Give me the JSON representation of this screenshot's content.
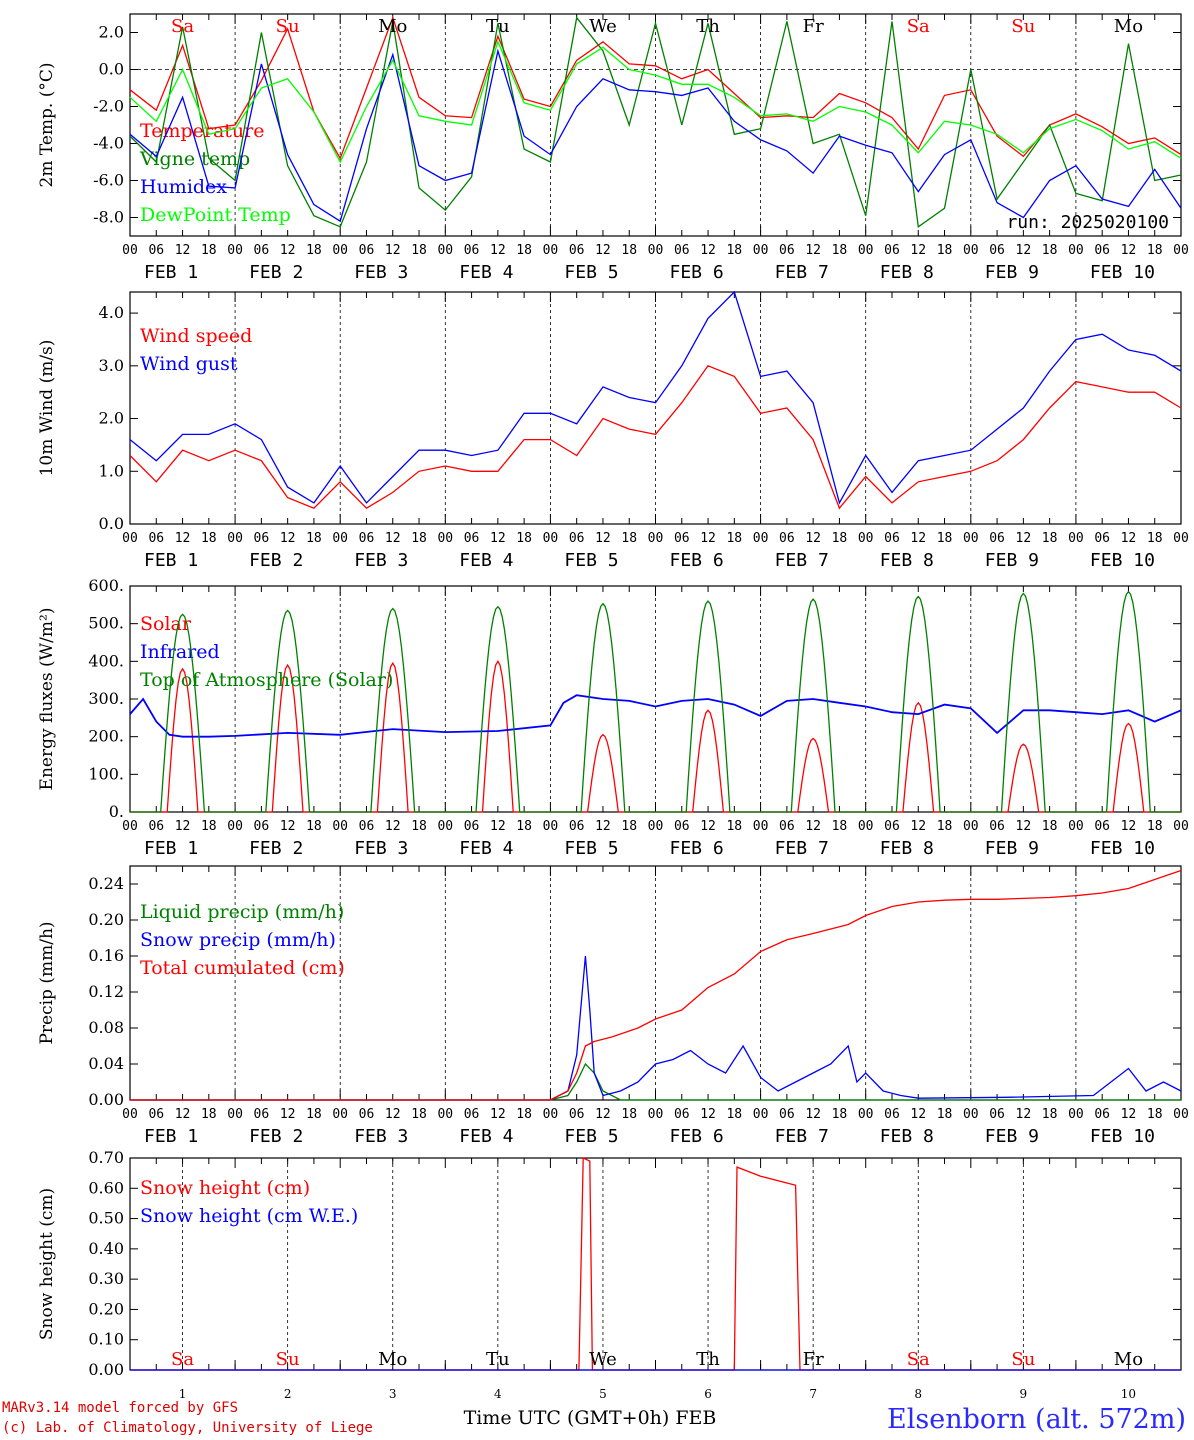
{
  "colors": {
    "red": "#ff0000",
    "green": "#008000",
    "blue": "#0000ff",
    "lightgreen": "#00ff00",
    "axis": "#000000"
  },
  "footer": {
    "credit1": "MARv3.14 model forced by GFS",
    "credit2": "(c) Lab. of Climatology, University of Liege",
    "xlabel": "Time UTC (GMT+0h) FEB",
    "station": "Elsenborn (alt. 572m)"
  },
  "hour_ticks": [
    "00",
    "06",
    "12",
    "18"
  ],
  "date_labels": [
    "FEB  1",
    "FEB  2",
    "FEB  3",
    "FEB  4",
    "FEB  5",
    "FEB  6",
    "FEB  7",
    "FEB  8",
    "FEB  9",
    "FEB 10"
  ],
  "bottom_day_numbers": [
    "1",
    "2",
    "3",
    "4",
    "5",
    "6",
    "7",
    "8",
    "9",
    "10"
  ],
  "weekdays": [
    {
      "label": "Sa",
      "color": "#ff0000"
    },
    {
      "label": "Su",
      "color": "#ff0000"
    },
    {
      "label": "Mo",
      "color": "#000000"
    },
    {
      "label": "Tu",
      "color": "#000000"
    },
    {
      "label": "We",
      "color": "#000000"
    },
    {
      "label": "Th",
      "color": "#000000"
    },
    {
      "label": "Fr",
      "color": "#000000"
    },
    {
      "label": "Sa",
      "color": "#ff0000"
    },
    {
      "label": "Su",
      "color": "#ff0000"
    },
    {
      "label": "Mo",
      "color": "#000000"
    }
  ],
  "chart_data": [
    {
      "type": "line",
      "ylabel": "2m Temp. (°C)",
      "ylim": [
        -9,
        3
      ],
      "yticks": [
        "-8.0",
        "-6.0",
        "-4.0",
        "-2.0",
        "0.0",
        "2.0"
      ],
      "yvalues": [
        -8,
        -6,
        -4,
        -2,
        0,
        2
      ],
      "zero_line": true,
      "annotation": "run: 2025020100",
      "x_unit": "hours since FEB 1 00 UTC",
      "series": [
        {
          "name": "Temperature",
          "color": "#ff0000",
          "x": [
            0,
            6,
            12,
            18,
            24,
            30,
            36,
            42,
            48,
            54,
            60,
            66,
            72,
            78,
            84,
            90,
            96,
            102,
            108,
            114,
            120,
            126,
            132,
            138,
            144,
            150,
            156,
            162,
            168,
            174,
            180,
            186,
            192,
            198,
            204,
            210,
            216,
            222,
            228,
            234,
            240
          ],
          "y": [
            -1.1,
            -2.2,
            1.3,
            -3.2,
            -3.0,
            -0.6,
            2.2,
            -2.3,
            -4.8,
            -1.0,
            2.8,
            -1.5,
            -2.5,
            -2.6,
            1.8,
            -1.6,
            -2.0,
            0.5,
            1.5,
            0.3,
            0.2,
            -0.5,
            0.0,
            -1.3,
            -2.6,
            -2.5,
            -2.6,
            -1.3,
            -1.8,
            -2.6,
            -4.3,
            -1.4,
            -1.1,
            -3.6,
            -4.7,
            -3.0,
            -2.4,
            -3.1,
            -4.0,
            -3.7,
            -4.6
          ]
        },
        {
          "name": "Vigne temp",
          "color": "#008000",
          "x": [
            0,
            6,
            12,
            18,
            24,
            30,
            36,
            42,
            48,
            54,
            60,
            66,
            72,
            78,
            84,
            90,
            96,
            102,
            108,
            114,
            120,
            126,
            132,
            138,
            144,
            150,
            156,
            162,
            168,
            174,
            180,
            186,
            192,
            198,
            204,
            210,
            216,
            222,
            228,
            234,
            240
          ],
          "y": [
            -3.6,
            -5.0,
            2.3,
            -4.8,
            -6.0,
            2.0,
            -5.2,
            -7.9,
            -8.5,
            -5.0,
            2.6,
            -6.4,
            -7.6,
            -5.8,
            2.5,
            -4.3,
            -5.0,
            2.8,
            1.0,
            -3.0,
            2.5,
            -3.0,
            2.5,
            -3.5,
            -3.2,
            2.6,
            -4.0,
            -3.5,
            -7.9,
            2.6,
            -8.5,
            -7.5,
            0.0,
            -7.0,
            -5.0,
            -3.0,
            -6.7,
            -7.1,
            1.4,
            -6.0,
            -5.7
          ]
        },
        {
          "name": "Humidex",
          "color": "#0000ff",
          "x": [
            0,
            6,
            12,
            18,
            24,
            30,
            36,
            42,
            48,
            54,
            60,
            66,
            72,
            78,
            84,
            90,
            96,
            102,
            108,
            114,
            120,
            126,
            132,
            138,
            144,
            150,
            156,
            162,
            168,
            174,
            180,
            186,
            192,
            198,
            204,
            210,
            216,
            222,
            228,
            234,
            240
          ],
          "y": [
            -3.5,
            -4.7,
            -1.5,
            -6.3,
            -6.4,
            0.3,
            -4.6,
            -7.3,
            -8.2,
            -3.2,
            0.8,
            -5.2,
            -6.0,
            -5.6,
            1.0,
            -3.6,
            -4.6,
            -2.0,
            -0.5,
            -1.1,
            -1.2,
            -1.4,
            -1.0,
            -2.8,
            -3.8,
            -4.4,
            -5.6,
            -3.6,
            -4.1,
            -4.5,
            -6.6,
            -4.6,
            -3.8,
            -7.2,
            -8.0,
            -6.0,
            -5.2,
            -7.0,
            -7.4,
            -5.4,
            -7.5
          ]
        },
        {
          "name": "DewPoint Temp",
          "color": "#00ff00",
          "x": [
            0,
            6,
            12,
            18,
            24,
            30,
            36,
            42,
            48,
            54,
            60,
            66,
            72,
            78,
            84,
            90,
            96,
            102,
            108,
            114,
            120,
            126,
            132,
            138,
            144,
            150,
            156,
            162,
            168,
            174,
            180,
            186,
            192,
            198,
            204,
            210,
            216,
            222,
            228,
            234,
            240
          ],
          "y": [
            -1.5,
            -2.8,
            0.0,
            -3.5,
            -3.2,
            -1.0,
            -0.5,
            -2.3,
            -5.0,
            -2.0,
            0.5,
            -2.5,
            -2.8,
            -3.0,
            1.5,
            -1.8,
            -2.2,
            0.3,
            1.2,
            0.0,
            -0.3,
            -0.8,
            -0.8,
            -1.5,
            -2.5,
            -2.4,
            -2.8,
            -2.0,
            -2.3,
            -3.0,
            -4.5,
            -2.8,
            -3.0,
            -3.5,
            -4.5,
            -3.2,
            -2.7,
            -3.3,
            -4.3,
            -3.9,
            -4.8
          ]
        }
      ]
    },
    {
      "type": "line",
      "ylabel": "10m Wind (m/s)",
      "ylim": [
        0,
        4.4
      ],
      "yticks": [
        "0.0",
        "1.0",
        "2.0",
        "3.0",
        "4.0"
      ],
      "yvalues": [
        0,
        1,
        2,
        3,
        4
      ],
      "x_unit": "hours since FEB 1 00 UTC",
      "series": [
        {
          "name": "Wind speed",
          "color": "#ff0000",
          "x": [
            0,
            6,
            12,
            18,
            24,
            30,
            36,
            42,
            48,
            54,
            60,
            66,
            72,
            78,
            84,
            90,
            96,
            102,
            108,
            114,
            120,
            126,
            132,
            138,
            144,
            150,
            156,
            162,
            168,
            174,
            180,
            186,
            192,
            198,
            204,
            210,
            216,
            222,
            228,
            234,
            240
          ],
          "y": [
            1.3,
            0.8,
            1.4,
            1.2,
            1.4,
            1.2,
            0.5,
            0.3,
            0.8,
            0.3,
            0.6,
            1.0,
            1.1,
            1.0,
            1.0,
            1.6,
            1.6,
            1.3,
            2.0,
            1.8,
            1.7,
            2.3,
            3.0,
            2.8,
            2.1,
            2.2,
            1.6,
            0.3,
            0.9,
            0.4,
            0.8,
            0.9,
            1.0,
            1.2,
            1.6,
            2.2,
            2.7,
            2.6,
            2.5,
            2.5,
            2.2
          ]
        },
        {
          "name": "Wind gust",
          "color": "#0000ff",
          "x": [
            0,
            6,
            12,
            18,
            24,
            30,
            36,
            42,
            48,
            54,
            60,
            66,
            72,
            78,
            84,
            90,
            96,
            102,
            108,
            114,
            120,
            126,
            132,
            138,
            144,
            150,
            156,
            162,
            168,
            174,
            180,
            186,
            192,
            198,
            204,
            210,
            216,
            222,
            228,
            234,
            240
          ],
          "y": [
            1.6,
            1.2,
            1.7,
            1.7,
            1.9,
            1.6,
            0.7,
            0.4,
            1.1,
            0.4,
            0.9,
            1.4,
            1.4,
            1.3,
            1.4,
            2.1,
            2.1,
            1.9,
            2.6,
            2.4,
            2.3,
            3.0,
            3.9,
            4.4,
            2.8,
            2.9,
            2.3,
            0.4,
            1.3,
            0.6,
            1.2,
            1.3,
            1.4,
            1.8,
            2.2,
            2.9,
            3.5,
            3.6,
            3.3,
            3.2,
            2.9
          ]
        }
      ]
    },
    {
      "type": "line",
      "ylabel": "Energy fluxes (W/m²)",
      "ylim": [
        0,
        600
      ],
      "yticks": [
        "0.",
        "100.",
        "200.",
        "300.",
        "400.",
        "500.",
        "600."
      ],
      "yvalues": [
        0,
        100,
        200,
        300,
        400,
        500,
        600
      ],
      "x_unit": "hours since FEB 1 00 UTC",
      "series": [
        {
          "name": "Solar",
          "color": "#ff0000",
          "peaks": [
            380,
            390,
            395,
            400,
            205,
            270,
            195,
            290,
            180,
            235
          ]
        },
        {
          "name": "Infrared",
          "color": "#0000ff",
          "x": [
            0,
            3,
            6,
            9,
            12,
            18,
            24,
            36,
            48,
            60,
            72,
            84,
            96,
            99,
            102,
            108,
            114,
            120,
            126,
            132,
            138,
            144,
            150,
            156,
            162,
            168,
            174,
            180,
            186,
            192,
            198,
            204,
            210,
            216,
            222,
            228,
            234,
            240
          ],
          "y": [
            260,
            300,
            240,
            205,
            200,
            200,
            202,
            210,
            205,
            220,
            212,
            215,
            230,
            290,
            310,
            300,
            295,
            280,
            295,
            300,
            285,
            255,
            295,
            300,
            290,
            280,
            265,
            260,
            285,
            275,
            210,
            270,
            270,
            265,
            260,
            270,
            240,
            270
          ]
        },
        {
          "name": "Top of Atmosphere (Solar)",
          "color": "#008000",
          "peaks": [
            525,
            535,
            540,
            545,
            553,
            560,
            565,
            572,
            580,
            585
          ]
        }
      ]
    },
    {
      "type": "line",
      "ylabel": "Precip (mm/h)",
      "ylim": [
        0,
        0.26
      ],
      "yticks": [
        "0.00",
        "0.04",
        "0.08",
        "0.12",
        "0.16",
        "0.20",
        "0.24"
      ],
      "yvalues": [
        0,
        0.04,
        0.08,
        0.12,
        0.16,
        0.2,
        0.24
      ],
      "x_unit": "hours since FEB 1 00 UTC",
      "series": [
        {
          "name": "Liquid precip (mm/h)",
          "color": "#008000",
          "x": [
            0,
            96,
            100,
            102,
            104,
            106,
            108,
            112,
            240
          ],
          "y": [
            0,
            0,
            0.005,
            0.02,
            0.04,
            0.03,
            0.01,
            0,
            0
          ]
        },
        {
          "name": "Snow precip (mm/h)",
          "color": "#0000ff",
          "x": [
            0,
            96,
            100,
            102,
            104,
            105,
            106,
            108,
            112,
            116,
            120,
            124,
            128,
            132,
            136,
            140,
            144,
            148,
            152,
            156,
            160,
            164,
            166,
            168,
            172,
            176,
            180,
            200,
            220,
            228,
            232,
            236,
            240
          ],
          "y": [
            0,
            0,
            0.01,
            0.05,
            0.16,
            0.1,
            0.03,
            0.005,
            0.01,
            0.02,
            0.04,
            0.045,
            0.055,
            0.04,
            0.03,
            0.06,
            0.025,
            0.01,
            0.02,
            0.03,
            0.04,
            0.06,
            0.02,
            0.03,
            0.01,
            0.005,
            0.002,
            0.003,
            0.005,
            0.035,
            0.01,
            0.02,
            0.01
          ]
        },
        {
          "name": "Total cumulated (cm)",
          "color": "#ff0000",
          "x": [
            0,
            96,
            100,
            102,
            104,
            106,
            110,
            116,
            120,
            126,
            132,
            138,
            144,
            150,
            156,
            160,
            164,
            168,
            174,
            180,
            186,
            192,
            198,
            204,
            210,
            216,
            222,
            228,
            234,
            240
          ],
          "y": [
            0,
            0,
            0.01,
            0.03,
            0.06,
            0.065,
            0.07,
            0.08,
            0.09,
            0.1,
            0.125,
            0.14,
            0.165,
            0.178,
            0.185,
            0.19,
            0.195,
            0.205,
            0.215,
            0.22,
            0.222,
            0.223,
            0.223,
            0.224,
            0.225,
            0.227,
            0.23,
            0.235,
            0.245,
            0.255
          ]
        }
      ]
    },
    {
      "type": "line",
      "ylabel": "Snow height (cm)",
      "ylim": [
        0,
        0.7
      ],
      "yticks": [
        "0.00",
        "0.10",
        "0.20",
        "0.30",
        "0.40",
        "0.50",
        "0.60",
        "0.70"
      ],
      "yvalues": [
        0,
        0.1,
        0.2,
        0.3,
        0.4,
        0.5,
        0.6,
        0.7
      ],
      "x_unit": "hours since FEB 1 00 UTC",
      "series": [
        {
          "name": "Snow height (cm)",
          "color": "#ff0000",
          "x": [
            0,
            102.5,
            103.5,
            105,
            105.6,
            138,
            138.6,
            144,
            152,
            153,
            154,
            240
          ],
          "y": [
            0,
            0,
            0.7,
            0.69,
            0,
            0,
            0.67,
            0.64,
            0.61,
            0,
            0,
            0
          ]
        },
        {
          "name": "Snow height (cm W.E.)",
          "color": "#0000ff",
          "x": [
            0,
            240
          ],
          "y": [
            0,
            0
          ]
        }
      ]
    }
  ]
}
